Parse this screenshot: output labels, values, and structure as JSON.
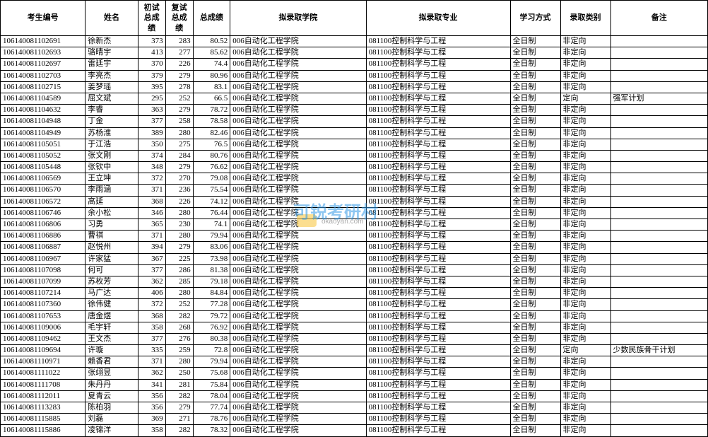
{
  "headers": {
    "id": "考生编号",
    "name": "姓名",
    "score1": "初试总成绩",
    "score2": "复试总成绩",
    "score3": "总成绩",
    "college": "拟录取学院",
    "major": "拟录取专业",
    "studyMode": "学习方式",
    "admitType": "录取类别",
    "remark": "备注"
  },
  "table": {
    "border_color": "#000000",
    "bg_color": "#ffffff",
    "font_size": 11,
    "header_font_weight": "bold"
  },
  "watermark": {
    "main": "可锐考研村",
    "sub": "okaoyan.com",
    "main_color": "#3399e6",
    "sub_color": "#888888"
  },
  "rows": [
    {
      "id": "106140081102691",
      "name": "徐新杰",
      "s1": "373",
      "s2": "283",
      "s3": "80.52",
      "college": "006自动化工程学院",
      "major": "081100控制科学与工程",
      "study": "全日制",
      "admit": "非定向",
      "remark": ""
    },
    {
      "id": "106140081102693",
      "name": "骆晴宇",
      "s1": "413",
      "s2": "277",
      "s3": "85.62",
      "college": "006自动化工程学院",
      "major": "081100控制科学与工程",
      "study": "全日制",
      "admit": "非定向",
      "remark": ""
    },
    {
      "id": "106140081102697",
      "name": "雷廷宇",
      "s1": "370",
      "s2": "226",
      "s3": "74.4",
      "college": "006自动化工程学院",
      "major": "081100控制科学与工程",
      "study": "全日制",
      "admit": "非定向",
      "remark": ""
    },
    {
      "id": "106140081102703",
      "name": "李亮杰",
      "s1": "379",
      "s2": "279",
      "s3": "80.96",
      "college": "006自动化工程学院",
      "major": "081100控制科学与工程",
      "study": "全日制",
      "admit": "非定向",
      "remark": ""
    },
    {
      "id": "106140081102715",
      "name": "姜梦瑶",
      "s1": "395",
      "s2": "278",
      "s3": "83.1",
      "college": "006自动化工程学院",
      "major": "081100控制科学与工程",
      "study": "全日制",
      "admit": "非定向",
      "remark": ""
    },
    {
      "id": "106140081104589",
      "name": "屈文斌",
      "s1": "295",
      "s2": "252",
      "s3": "66.5",
      "college": "006自动化工程学院",
      "major": "081100控制科学与工程",
      "study": "全日制",
      "admit": "定向",
      "remark": "强军计划"
    },
    {
      "id": "106140081104632",
      "name": "李睿",
      "s1": "363",
      "s2": "279",
      "s3": "78.72",
      "college": "006自动化工程学院",
      "major": "081100控制科学与工程",
      "study": "全日制",
      "admit": "非定向",
      "remark": ""
    },
    {
      "id": "106140081104948",
      "name": "丁金",
      "s1": "377",
      "s2": "258",
      "s3": "78.58",
      "college": "006自动化工程学院",
      "major": "081100控制科学与工程",
      "study": "全日制",
      "admit": "非定向",
      "remark": ""
    },
    {
      "id": "106140081104949",
      "name": "苏杨淮",
      "s1": "389",
      "s2": "280",
      "s3": "82.46",
      "college": "006自动化工程学院",
      "major": "081100控制科学与工程",
      "study": "全日制",
      "admit": "非定向",
      "remark": ""
    },
    {
      "id": "106140081105051",
      "name": "于江浩",
      "s1": "350",
      "s2": "275",
      "s3": "76.5",
      "college": "006自动化工程学院",
      "major": "081100控制科学与工程",
      "study": "全日制",
      "admit": "非定向",
      "remark": ""
    },
    {
      "id": "106140081105052",
      "name": "张文刚",
      "s1": "374",
      "s2": "284",
      "s3": "80.76",
      "college": "006自动化工程学院",
      "major": "081100控制科学与工程",
      "study": "全日制",
      "admit": "非定向",
      "remark": ""
    },
    {
      "id": "106140081105448",
      "name": "张钦中",
      "s1": "348",
      "s2": "279",
      "s3": "76.62",
      "college": "006自动化工程学院",
      "major": "081100控制科学与工程",
      "study": "全日制",
      "admit": "非定向",
      "remark": ""
    },
    {
      "id": "106140081106569",
      "name": "王立坤",
      "s1": "372",
      "s2": "270",
      "s3": "79.08",
      "college": "006自动化工程学院",
      "major": "081100控制科学与工程",
      "study": "全日制",
      "admit": "非定向",
      "remark": ""
    },
    {
      "id": "106140081106570",
      "name": "李雨涵",
      "s1": "371",
      "s2": "236",
      "s3": "75.54",
      "college": "006自动化工程学院",
      "major": "081100控制科学与工程",
      "study": "全日制",
      "admit": "非定向",
      "remark": ""
    },
    {
      "id": "106140081106572",
      "name": "高延",
      "s1": "368",
      "s2": "226",
      "s3": "74.12",
      "college": "006自动化工程学院",
      "major": "081100控制科学与工程",
      "study": "全日制",
      "admit": "非定向",
      "remark": ""
    },
    {
      "id": "106140081106746",
      "name": "余小松",
      "s1": "346",
      "s2": "280",
      "s3": "76.44",
      "college": "006自动化工程学院",
      "major": "081100控制科学与工程",
      "study": "全日制",
      "admit": "非定向",
      "remark": ""
    },
    {
      "id": "106140081106806",
      "name": "习勇",
      "s1": "365",
      "s2": "230",
      "s3": "74.1",
      "college": "006自动化工程学院",
      "major": "081100控制科学与工程",
      "study": "全日制",
      "admit": "非定向",
      "remark": ""
    },
    {
      "id": "106140081106886",
      "name": "曹祺",
      "s1": "371",
      "s2": "280",
      "s3": "79.94",
      "college": "006自动化工程学院",
      "major": "081100控制科学与工程",
      "study": "全日制",
      "admit": "非定向",
      "remark": ""
    },
    {
      "id": "106140081106887",
      "name": "赵悦州",
      "s1": "394",
      "s2": "279",
      "s3": "83.06",
      "college": "006自动化工程学院",
      "major": "081100控制科学与工程",
      "study": "全日制",
      "admit": "非定向",
      "remark": ""
    },
    {
      "id": "106140081106967",
      "name": "许家猛",
      "s1": "367",
      "s2": "225",
      "s3": "73.98",
      "college": "006自动化工程学院",
      "major": "081100控制科学与工程",
      "study": "全日制",
      "admit": "非定向",
      "remark": ""
    },
    {
      "id": "106140081107098",
      "name": "何可",
      "s1": "377",
      "s2": "286",
      "s3": "81.38",
      "college": "006自动化工程学院",
      "major": "081100控制科学与工程",
      "study": "全日制",
      "admit": "非定向",
      "remark": ""
    },
    {
      "id": "106140081107099",
      "name": "苏枚芳",
      "s1": "362",
      "s2": "285",
      "s3": "79.18",
      "college": "006自动化工程学院",
      "major": "081100控制科学与工程",
      "study": "全日制",
      "admit": "非定向",
      "remark": ""
    },
    {
      "id": "106140081107214",
      "name": "马广达",
      "s1": "406",
      "s2": "280",
      "s3": "84.84",
      "college": "006自动化工程学院",
      "major": "081100控制科学与工程",
      "study": "全日制",
      "admit": "非定向",
      "remark": ""
    },
    {
      "id": "106140081107360",
      "name": "徐伟健",
      "s1": "372",
      "s2": "252",
      "s3": "77.28",
      "college": "006自动化工程学院",
      "major": "081100控制科学与工程",
      "study": "全日制",
      "admit": "非定向",
      "remark": ""
    },
    {
      "id": "106140081107653",
      "name": "唐金煜",
      "s1": "368",
      "s2": "282",
      "s3": "79.72",
      "college": "006自动化工程学院",
      "major": "081100控制科学与工程",
      "study": "全日制",
      "admit": "非定向",
      "remark": ""
    },
    {
      "id": "106140081109006",
      "name": "毛宇轩",
      "s1": "358",
      "s2": "268",
      "s3": "76.92",
      "college": "006自动化工程学院",
      "major": "081100控制科学与工程",
      "study": "全日制",
      "admit": "非定向",
      "remark": ""
    },
    {
      "id": "106140081109462",
      "name": "王文杰",
      "s1": "377",
      "s2": "276",
      "s3": "80.38",
      "college": "006自动化工程学院",
      "major": "081100控制科学与工程",
      "study": "全日制",
      "admit": "非定向",
      "remark": ""
    },
    {
      "id": "106140081109694",
      "name": "许璇",
      "s1": "335",
      "s2": "259",
      "s3": "72.8",
      "college": "006自动化工程学院",
      "major": "081100控制科学与工程",
      "study": "全日制",
      "admit": "定向",
      "remark": "少数民族骨干计划"
    },
    {
      "id": "106140081110971",
      "name": "赖香君",
      "s1": "371",
      "s2": "280",
      "s3": "79.94",
      "college": "006自动化工程学院",
      "major": "081100控制科学与工程",
      "study": "全日制",
      "admit": "非定向",
      "remark": ""
    },
    {
      "id": "106140081111022",
      "name": "张翊昱",
      "s1": "362",
      "s2": "250",
      "s3": "75.68",
      "college": "006自动化工程学院",
      "major": "081100控制科学与工程",
      "study": "全日制",
      "admit": "非定向",
      "remark": ""
    },
    {
      "id": "106140081111708",
      "name": "朱丹丹",
      "s1": "341",
      "s2": "281",
      "s3": "75.84",
      "college": "006自动化工程学院",
      "major": "081100控制科学与工程",
      "study": "全日制",
      "admit": "非定向",
      "remark": ""
    },
    {
      "id": "106140081112011",
      "name": "夏青云",
      "s1": "356",
      "s2": "282",
      "s3": "78.04",
      "college": "006自动化工程学院",
      "major": "081100控制科学与工程",
      "study": "全日制",
      "admit": "非定向",
      "remark": ""
    },
    {
      "id": "106140081113283",
      "name": "陈柏羽",
      "s1": "356",
      "s2": "279",
      "s3": "77.74",
      "college": "006自动化工程学院",
      "major": "081100控制科学与工程",
      "study": "全日制",
      "admit": "非定向",
      "remark": ""
    },
    {
      "id": "106140081115885",
      "name": "刘磊",
      "s1": "369",
      "s2": "271",
      "s3": "78.76",
      "college": "006自动化工程学院",
      "major": "081100控制科学与工程",
      "study": "全日制",
      "admit": "非定向",
      "remark": ""
    },
    {
      "id": "106140081115886",
      "name": "凌锦洋",
      "s1": "358",
      "s2": "282",
      "s3": "78.32",
      "college": "006自动化工程学院",
      "major": "081100控制科学与工程",
      "study": "全日制",
      "admit": "非定向",
      "remark": ""
    }
  ]
}
